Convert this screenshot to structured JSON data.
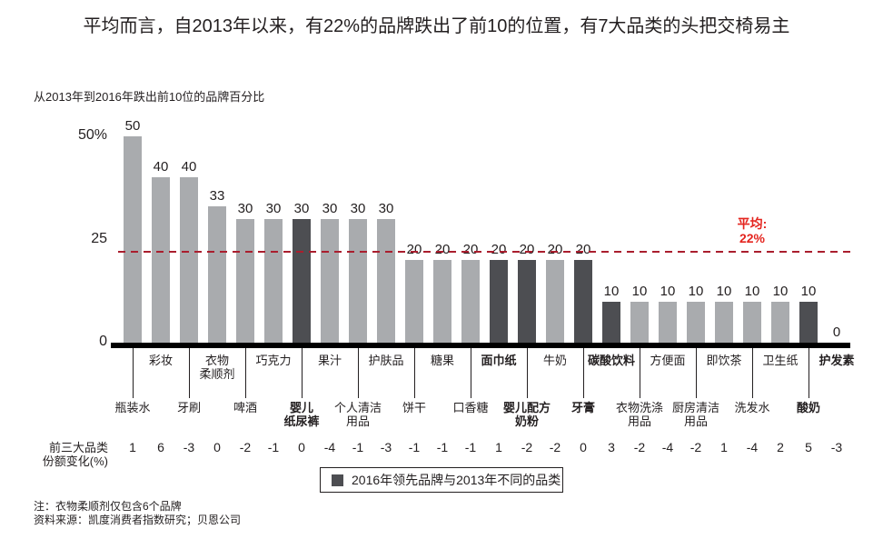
{
  "title": "平均而言，自2013年以来，有22%的品牌跌出了前10的位置，有7大品类的头把交椅易主",
  "subtitle": "从2013年到2016年跌出前10位的品牌百分比",
  "average_label": {
    "line1": "平均:",
    "line2": "22%"
  },
  "legend": {
    "label": "2016年领先品牌与2013年不同的品类"
  },
  "share_row_label": {
    "line1": "前三大品类",
    "line2": "份额变化(%)"
  },
  "notes": {
    "note1": "注：衣物柔顺剂仅包含6个品牌",
    "note2": "资料来源：凯度消费者指数研究；贝恩公司"
  },
  "colors": {
    "bar_light": "#a9abae",
    "bar_dark": "#4d4e52",
    "average_line": "#aa1e2e",
    "average_text": "#e4251f",
    "text": "#231f20"
  },
  "chart_data": {
    "type": "bar",
    "title": "从2013年到2016年跌出前10位的品牌百分比",
    "ylabel": "%",
    "ylim": [
      0,
      50
    ],
    "y_ticks": [
      {
        "value": 50,
        "label": "50%"
      },
      {
        "value": 25,
        "label": "25"
      },
      {
        "value": 0,
        "label": "0"
      }
    ],
    "average_line_value": 22,
    "grid": false,
    "legend_position": "bottom",
    "categories": [
      {
        "name": "瓶装水",
        "lines": [
          "瓶装水"
        ],
        "value": 50,
        "leader_changed": false,
        "top3_share_change": 1
      },
      {
        "name": "彩妆",
        "lines": [
          "彩妆"
        ],
        "value": 40,
        "leader_changed": false,
        "top3_share_change": 6
      },
      {
        "name": "牙刷",
        "lines": [
          "牙刷"
        ],
        "value": 40,
        "leader_changed": false,
        "top3_share_change": -3
      },
      {
        "name": "衣物柔顺剂",
        "lines": [
          "衣物",
          "柔顺剂"
        ],
        "value": 33,
        "leader_changed": false,
        "top3_share_change": 0
      },
      {
        "name": "啤酒",
        "lines": [
          "啤酒"
        ],
        "value": 30,
        "leader_changed": false,
        "top3_share_change": -2
      },
      {
        "name": "巧克力",
        "lines": [
          "巧克力"
        ],
        "value": 30,
        "leader_changed": false,
        "top3_share_change": -1
      },
      {
        "name": "婴儿纸尿裤",
        "lines": [
          "婴儿",
          "纸尿裤"
        ],
        "value": 30,
        "leader_changed": true,
        "top3_share_change": 0
      },
      {
        "name": "果汁",
        "lines": [
          "果汁"
        ],
        "value": 30,
        "leader_changed": false,
        "top3_share_change": -4
      },
      {
        "name": "个人清洁用品",
        "lines": [
          "个人清洁",
          "用品"
        ],
        "value": 30,
        "leader_changed": false,
        "top3_share_change": -1
      },
      {
        "name": "护肤品",
        "lines": [
          "护肤品"
        ],
        "value": 30,
        "leader_changed": false,
        "top3_share_change": -3
      },
      {
        "name": "饼干",
        "lines": [
          "饼干"
        ],
        "value": 20,
        "leader_changed": false,
        "top3_share_change": -1
      },
      {
        "name": "糖果",
        "lines": [
          "糖果"
        ],
        "value": 20,
        "leader_changed": false,
        "top3_share_change": -1
      },
      {
        "name": "口香糖",
        "lines": [
          "口香糖"
        ],
        "value": 20,
        "leader_changed": false,
        "top3_share_change": -1
      },
      {
        "name": "面巾纸",
        "lines": [
          "面巾纸"
        ],
        "value": 20,
        "leader_changed": true,
        "top3_share_change": 1
      },
      {
        "name": "婴儿配方奶粉",
        "lines": [
          "婴儿配方",
          "奶粉"
        ],
        "value": 20,
        "leader_changed": true,
        "top3_share_change": -2
      },
      {
        "name": "牛奶",
        "lines": [
          "牛奶"
        ],
        "value": 20,
        "leader_changed": false,
        "top3_share_change": -2
      },
      {
        "name": "牙膏",
        "lines": [
          "牙膏"
        ],
        "value": 20,
        "leader_changed": true,
        "top3_share_change": 0
      },
      {
        "name": "碳酸饮料",
        "lines": [
          "碳酸饮料"
        ],
        "value": 10,
        "leader_changed": true,
        "top3_share_change": 3
      },
      {
        "name": "衣物洗涤用品",
        "lines": [
          "衣物洗涤",
          "用品"
        ],
        "value": 10,
        "leader_changed": false,
        "top3_share_change": -2
      },
      {
        "name": "方便面",
        "lines": [
          "方便面"
        ],
        "value": 10,
        "leader_changed": false,
        "top3_share_change": -4
      },
      {
        "name": "厨房清洁用品",
        "lines": [
          "厨房清洁",
          "用品"
        ],
        "value": 10,
        "leader_changed": false,
        "top3_share_change": -2
      },
      {
        "name": "即饮茶",
        "lines": [
          "即饮茶"
        ],
        "value": 10,
        "leader_changed": false,
        "top3_share_change": 1
      },
      {
        "name": "洗发水",
        "lines": [
          "洗发水"
        ],
        "value": 10,
        "leader_changed": false,
        "top3_share_change": -4
      },
      {
        "name": "卫生纸",
        "lines": [
          "卫生纸"
        ],
        "value": 10,
        "leader_changed": false,
        "top3_share_change": 2
      },
      {
        "name": "酸奶",
        "lines": [
          "酸奶"
        ],
        "value": 10,
        "leader_changed": true,
        "top3_share_change": 5
      },
      {
        "name": "护发素",
        "lines": [
          "护发素"
        ],
        "value": 0,
        "leader_changed": true,
        "top3_share_change": -3
      }
    ]
  }
}
